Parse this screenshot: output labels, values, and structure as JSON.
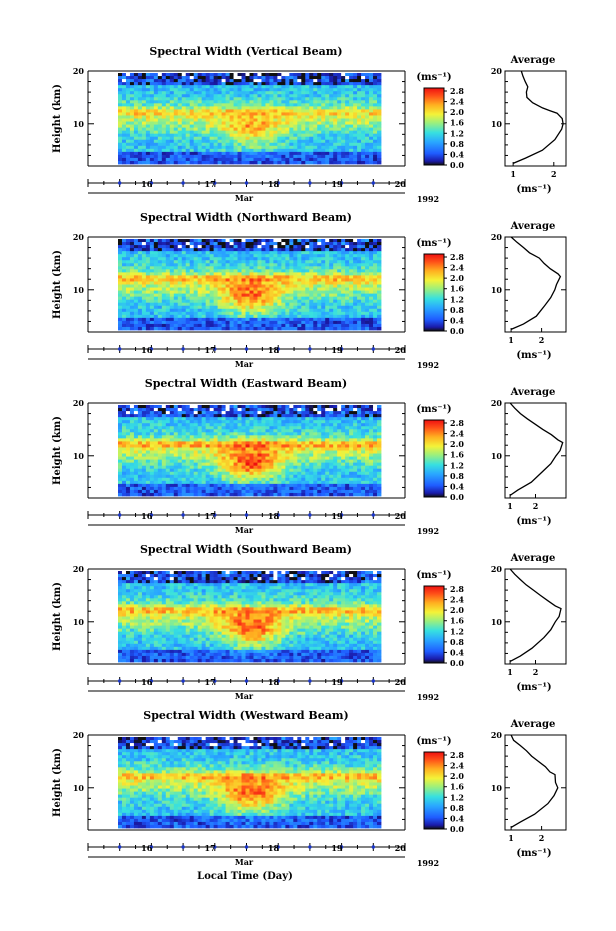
{
  "xaxis": {
    "month": "Mar",
    "year": "1992",
    "day_ticks": [
      "16",
      "17",
      "18",
      "19",
      "20"
    ],
    "label": "Local Time (Day)"
  },
  "colorbar": {
    "unit": "(ms⁻¹)",
    "ticks": [
      "0.0",
      "0.4",
      "0.8",
      "1.2",
      "1.6",
      "2.0",
      "2.4",
      "2.8"
    ]
  },
  "yaxis": {
    "label": "Height (km)",
    "ticks": [
      "10",
      "20"
    ]
  },
  "profile_common": {
    "title": "Average",
    "unit": "(ms⁻¹)"
  },
  "panels": [
    {
      "title": "Spectral Width (Vertical Beam)",
      "profile_xticks": [
        "1",
        "2"
      ]
    },
    {
      "title": "Spectral Width (Northward Beam)",
      "profile_xticks": [
        "1",
        "2"
      ]
    },
    {
      "title": "Spectral Width (Eastward Beam)",
      "profile_xticks": [
        "1",
        "2"
      ]
    },
    {
      "title": "Spectral Width (Southward Beam)",
      "profile_xticks": [
        "1",
        "2"
      ]
    },
    {
      "title": "Spectral Width (Westward Beam)",
      "profile_xticks": [
        "1",
        "2"
      ]
    }
  ],
  "chart_data": [
    {
      "type": "heatmap",
      "title": "Spectral Width (Vertical Beam)",
      "ylabel": "Height (km)",
      "ylim": [
        2,
        20
      ],
      "xlim": [
        "1992-03-15T12:00",
        "1992-03-20T12:00"
      ],
      "data_x_range": [
        "1992-03-16",
        "1992-03-20T06:00"
      ],
      "z_unit": "ms-1",
      "zlim": [
        0,
        2.8
      ],
      "colormap": "rainbow"
    },
    {
      "type": "line",
      "title": "Average",
      "xlabel": "(ms-1)",
      "ylabel": "",
      "xlim": [
        0.8,
        2.3
      ],
      "ylim": [
        2,
        20
      ],
      "x": [
        1.0,
        1.3,
        1.7,
        2.0,
        2.2,
        2.25,
        2.2,
        2.1,
        1.9,
        1.7,
        1.5,
        1.35,
        1.3,
        1.35,
        1.3,
        1.25,
        1.2
      ],
      "y": [
        2.5,
        3.5,
        5,
        7,
        9,
        10,
        11,
        12,
        12.5,
        13,
        14,
        15,
        16,
        17,
        18,
        19,
        20
      ]
    },
    {
      "type": "heatmap",
      "title": "Spectral Width (Northward Beam)",
      "ylabel": "Height (km)",
      "ylim": [
        2,
        20
      ],
      "xlim": [
        "1992-03-15T12:00",
        "1992-03-20T12:00"
      ],
      "data_x_range": [
        "1992-03-16",
        "1992-03-20T06:00"
      ],
      "z_unit": "ms-1",
      "zlim": [
        0,
        2.8
      ],
      "colormap": "rainbow"
    },
    {
      "type": "line",
      "title": "Average",
      "xlabel": "(ms-1)",
      "ylabel": "",
      "xlim": [
        0.8,
        2.8
      ],
      "ylim": [
        2,
        20
      ],
      "x": [
        1.0,
        1.4,
        1.8,
        2.1,
        2.3,
        2.4,
        2.5,
        2.6,
        2.55,
        2.3,
        2.1,
        1.9,
        1.6,
        1.4,
        1.2,
        1.0
      ],
      "y": [
        2.5,
        3.5,
        5,
        7,
        8.5,
        10,
        11,
        12.5,
        13,
        14,
        15,
        16,
        17,
        18,
        19,
        20
      ]
    },
    {
      "type": "heatmap",
      "title": "Spectral Width (Eastward Beam)",
      "ylabel": "Height (km)",
      "ylim": [
        2,
        20
      ],
      "xlim": [
        "1992-03-15T12:00",
        "1992-03-20T12:00"
      ],
      "data_x_range": [
        "1992-03-16",
        "1992-03-20T06:00"
      ],
      "z_unit": "ms-1",
      "zlim": [
        0,
        2.8
      ],
      "colormap": "rainbow"
    },
    {
      "type": "line",
      "title": "Average",
      "xlabel": "(ms-1)",
      "ylabel": "",
      "xlim": [
        0.8,
        3.2
      ],
      "ylim": [
        2,
        20
      ],
      "x": [
        1.0,
        1.3,
        1.8,
        2.3,
        2.6,
        2.8,
        3.0,
        3.1,
        2.9,
        2.6,
        2.3,
        2.0,
        1.7,
        1.4,
        1.2,
        1.0
      ],
      "y": [
        2.5,
        3.5,
        5,
        7,
        8.5,
        10,
        11,
        12.5,
        13,
        14,
        15,
        16,
        17,
        18,
        19,
        20
      ]
    },
    {
      "type": "heatmap",
      "title": "Spectral Width (Southward Beam)",
      "ylabel": "Height (km)",
      "ylim": [
        2,
        20
      ],
      "xlim": [
        "1992-03-15T12:00",
        "1992-03-20T12:00"
      ],
      "data_x_range": [
        "1992-03-16",
        "1992-03-20T06:00"
      ],
      "z_unit": "ms-1",
      "zlim": [
        0,
        2.8
      ],
      "colormap": "rainbow"
    },
    {
      "type": "line",
      "title": "Average",
      "xlabel": "(ms-1)",
      "ylabel": "",
      "xlim": [
        0.8,
        3.2
      ],
      "ylim": [
        2,
        20
      ],
      "x": [
        1.0,
        1.4,
        1.9,
        2.3,
        2.6,
        2.8,
        2.9,
        3.0,
        2.8,
        2.5,
        2.2,
        1.9,
        1.6,
        1.4,
        1.2,
        1.0
      ],
      "y": [
        2.5,
        3.5,
        5,
        7,
        8.5,
        10,
        11,
        12.5,
        13,
        14,
        15,
        16,
        17,
        18,
        19,
        20
      ]
    },
    {
      "type": "heatmap",
      "title": "Spectral Width (Westward Beam)",
      "ylabel": "Height (km)",
      "ylim": [
        2,
        20
      ],
      "xlim": [
        "1992-03-15T12:00",
        "1992-03-20T12:00"
      ],
      "data_x_range": [
        "1992-03-16",
        "1992-03-20T06:00"
      ],
      "z_unit": "ms-1",
      "zlim": [
        0,
        2.8
      ],
      "colormap": "rainbow"
    },
    {
      "type": "line",
      "title": "Average",
      "xlabel": "(ms-1)",
      "ylabel": "",
      "xlim": [
        0.8,
        2.8
      ],
      "ylim": [
        2,
        20
      ],
      "x": [
        1.0,
        1.3,
        1.8,
        2.2,
        2.4,
        2.5,
        2.45,
        2.4,
        2.3,
        2.1,
        1.9,
        1.7,
        1.5,
        1.3,
        1.1,
        1.0
      ],
      "y": [
        2.5,
        3.5,
        5,
        7,
        8.5,
        10,
        11,
        12.5,
        13,
        14,
        15,
        16,
        17,
        18,
        19,
        20
      ]
    }
  ]
}
